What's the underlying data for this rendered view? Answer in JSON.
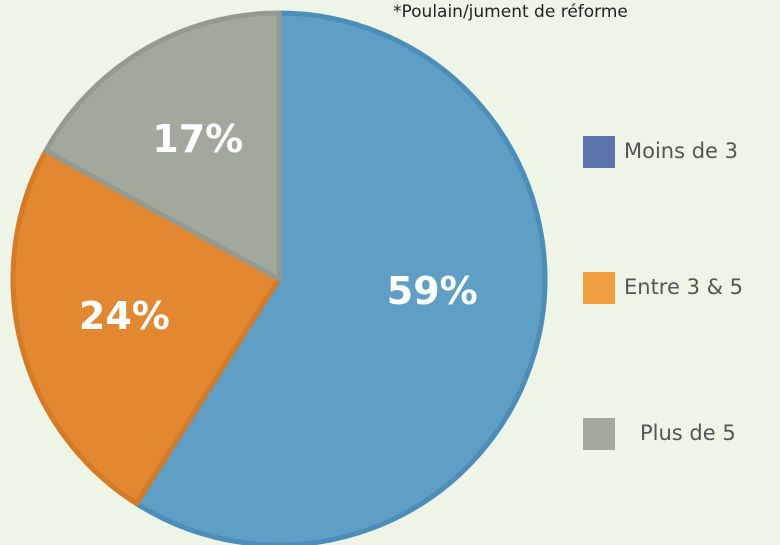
{
  "chart_data": {
    "type": "pie",
    "note": "*Poulain/jument de réforme",
    "categories": [
      "Moins de 3",
      "Entre 3 & 5",
      "Plus de 5"
    ],
    "values": [
      59,
      24,
      17
    ],
    "value_labels": [
      "59%",
      "24%",
      "17%"
    ],
    "colors": [
      "#5f9ec5",
      "#e38731",
      "#a3a89c"
    ],
    "legend_colors": [
      "#5b74ae",
      "#f0a040",
      "#a3a89c"
    ]
  }
}
